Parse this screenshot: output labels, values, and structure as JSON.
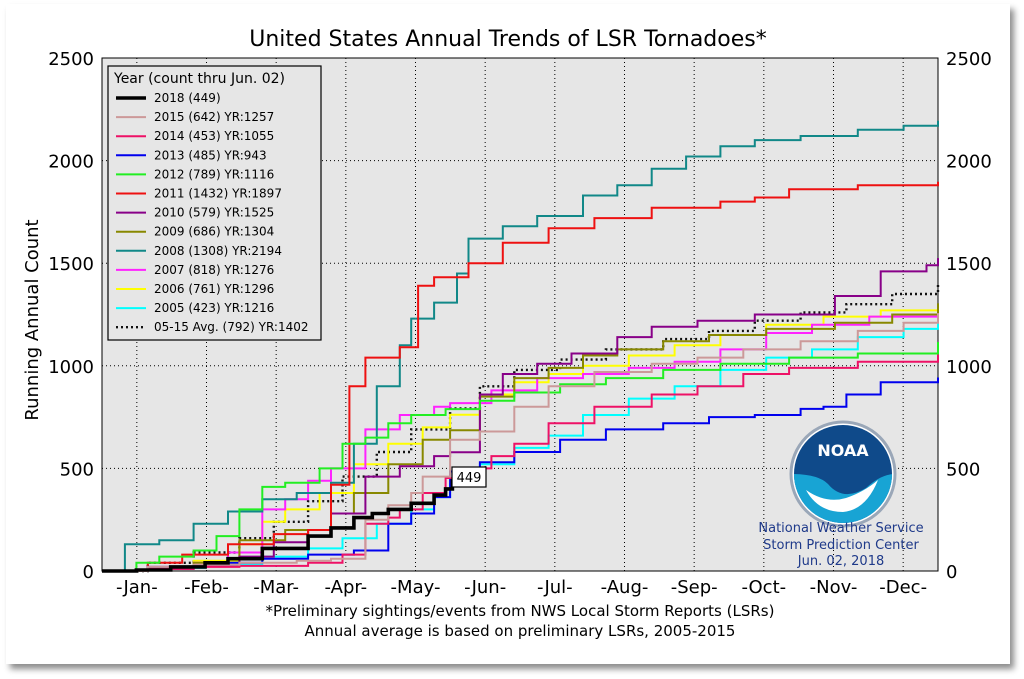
{
  "chart_data": {
    "type": "line",
    "title": "United States Annual Trends of LSR Tornadoes*",
    "ylabel": "Running Annual Count",
    "xlabel": "",
    "ylim": [
      0,
      2500
    ],
    "xlim": [
      0,
      365
    ],
    "y_ticks": [
      "0",
      "500",
      "1000",
      "1500",
      "2000",
      "2500"
    ],
    "x_tick_labels": [
      "-Jan-",
      "-Feb-",
      "-Mar-",
      "-Apr-",
      "-May-",
      "-Jun-",
      "-Jul-",
      "-Aug-",
      "-Sep-",
      "-Oct-",
      "-Nov-",
      "-Dec-"
    ],
    "grid": true,
    "legend_title": "Year (count thru Jun. 02)",
    "legend_position": "top-left",
    "footnote_1": "*Preliminary sightings/events from NWS Local Storm Reports (LSRs)",
    "footnote_2": "Annual average is based on preliminary LSRs, 2005-2015",
    "annotation_label": "449",
    "credit": {
      "line1": "National Weather Service",
      "line2": "Storm Prediction Center",
      "line3": "Jun. 02, 2018",
      "logo_text": "NOAA"
    },
    "series": [
      {
        "name": "2018 (449)",
        "color": "#000000",
        "width": 3.6,
        "dash": "",
        "points": [
          [
            0,
            0
          ],
          [
            15,
            5
          ],
          [
            30,
            20
          ],
          [
            45,
            40
          ],
          [
            55,
            60
          ],
          [
            70,
            110
          ],
          [
            90,
            170
          ],
          [
            100,
            210
          ],
          [
            110,
            260
          ],
          [
            118,
            280
          ],
          [
            125,
            300
          ],
          [
            135,
            330
          ],
          [
            145,
            370
          ],
          [
            150,
            400
          ],
          [
            153,
            449
          ]
        ]
      },
      {
        "name": "2015 (642) YR:1257",
        "color": "#cc9999",
        "width": 2,
        "dash": "",
        "points": [
          [
            0,
            0
          ],
          [
            20,
            20
          ],
          [
            40,
            30
          ],
          [
            60,
            40
          ],
          [
            85,
            50
          ],
          [
            100,
            60
          ],
          [
            115,
            250
          ],
          [
            125,
            320
          ],
          [
            135,
            380
          ],
          [
            140,
            460
          ],
          [
            152,
            640
          ],
          [
            165,
            680
          ],
          [
            180,
            800
          ],
          [
            195,
            900
          ],
          [
            215,
            970
          ],
          [
            240,
            1010
          ],
          [
            260,
            1040
          ],
          [
            280,
            1080
          ],
          [
            305,
            1120
          ],
          [
            330,
            1170
          ],
          [
            350,
            1210
          ],
          [
            365,
            1257
          ]
        ]
      },
      {
        "name": "2014 (453) YR:1055",
        "color": "#ee1166",
        "width": 2,
        "dash": "",
        "points": [
          [
            0,
            0
          ],
          [
            20,
            10
          ],
          [
            40,
            20
          ],
          [
            60,
            25
          ],
          [
            90,
            40
          ],
          [
            105,
            80
          ],
          [
            115,
            230
          ],
          [
            125,
            260
          ],
          [
            130,
            300
          ],
          [
            140,
            380
          ],
          [
            150,
            453
          ],
          [
            160,
            500
          ],
          [
            170,
            560
          ],
          [
            180,
            620
          ],
          [
            195,
            720
          ],
          [
            215,
            800
          ],
          [
            240,
            860
          ],
          [
            260,
            900
          ],
          [
            280,
            960
          ],
          [
            300,
            990
          ],
          [
            330,
            1020
          ],
          [
            365,
            1055
          ]
        ]
      },
      {
        "name": "2013 (485) YR:943",
        "color": "#0000ee",
        "width": 2,
        "dash": "",
        "points": [
          [
            0,
            0
          ],
          [
            20,
            20
          ],
          [
            45,
            40
          ],
          [
            70,
            60
          ],
          [
            90,
            80
          ],
          [
            110,
            100
          ],
          [
            125,
            230
          ],
          [
            135,
            280
          ],
          [
            145,
            360
          ],
          [
            152,
            485
          ],
          [
            165,
            530
          ],
          [
            180,
            580
          ],
          [
            200,
            640
          ],
          [
            220,
            690
          ],
          [
            245,
            720
          ],
          [
            265,
            750
          ],
          [
            285,
            760
          ],
          [
            305,
            790
          ],
          [
            315,
            800
          ],
          [
            325,
            860
          ],
          [
            340,
            920
          ],
          [
            365,
            943
          ]
        ]
      },
      {
        "name": "2012 (789) YR:1116",
        "color": "#22ee22",
        "width": 2,
        "dash": "",
        "points": [
          [
            0,
            0
          ],
          [
            15,
            40
          ],
          [
            25,
            70
          ],
          [
            40,
            100
          ],
          [
            50,
            170
          ],
          [
            60,
            300
          ],
          [
            70,
            410
          ],
          [
            80,
            430
          ],
          [
            95,
            500
          ],
          [
            105,
            620
          ],
          [
            115,
            650
          ],
          [
            125,
            720
          ],
          [
            135,
            760
          ],
          [
            150,
            789
          ],
          [
            165,
            830
          ],
          [
            180,
            870
          ],
          [
            200,
            910
          ],
          [
            220,
            940
          ],
          [
            245,
            980
          ],
          [
            270,
            1010
          ],
          [
            300,
            1040
          ],
          [
            330,
            1060
          ],
          [
            365,
            1116
          ]
        ]
      },
      {
        "name": "2011 (1432) YR:1897",
        "color": "#ee1111",
        "width": 2,
        "dash": "",
        "points": [
          [
            0,
            0
          ],
          [
            20,
            40
          ],
          [
            35,
            80
          ],
          [
            55,
            130
          ],
          [
            75,
            180
          ],
          [
            90,
            200
          ],
          [
            100,
            420
          ],
          [
            108,
            900
          ],
          [
            115,
            1040
          ],
          [
            130,
            1090
          ],
          [
            138,
            1390
          ],
          [
            145,
            1432
          ],
          [
            160,
            1500
          ],
          [
            175,
            1600
          ],
          [
            195,
            1670
          ],
          [
            215,
            1720
          ],
          [
            240,
            1770
          ],
          [
            270,
            1800
          ],
          [
            285,
            1820
          ],
          [
            300,
            1860
          ],
          [
            330,
            1880
          ],
          [
            365,
            1897
          ]
        ]
      },
      {
        "name": "2010 (579) YR:1525",
        "color": "#880088",
        "width": 2,
        "dash": "",
        "points": [
          [
            0,
            0
          ],
          [
            20,
            10
          ],
          [
            40,
            25
          ],
          [
            60,
            70
          ],
          [
            75,
            140
          ],
          [
            90,
            200
          ],
          [
            100,
            280
          ],
          [
            115,
            460
          ],
          [
            130,
            510
          ],
          [
            145,
            560
          ],
          [
            152,
            579
          ],
          [
            165,
            860
          ],
          [
            175,
            960
          ],
          [
            190,
            1010
          ],
          [
            205,
            1060
          ],
          [
            225,
            1140
          ],
          [
            240,
            1190
          ],
          [
            260,
            1220
          ],
          [
            285,
            1250
          ],
          [
            320,
            1340
          ],
          [
            340,
            1460
          ],
          [
            360,
            1490
          ],
          [
            365,
            1525
          ]
        ]
      },
      {
        "name": "2009 (686) YR:1304",
        "color": "#888800",
        "width": 2,
        "dash": "",
        "points": [
          [
            0,
            0
          ],
          [
            20,
            15
          ],
          [
            40,
            40
          ],
          [
            60,
            150
          ],
          [
            80,
            200
          ],
          [
            100,
            280
          ],
          [
            110,
            380
          ],
          [
            125,
            520
          ],
          [
            140,
            640
          ],
          [
            152,
            686
          ],
          [
            165,
            850
          ],
          [
            180,
            940
          ],
          [
            195,
            990
          ],
          [
            210,
            1050
          ],
          [
            225,
            1080
          ],
          [
            245,
            1120
          ],
          [
            265,
            1150
          ],
          [
            290,
            1180
          ],
          [
            320,
            1210
          ],
          [
            345,
            1250
          ],
          [
            365,
            1304
          ]
        ]
      },
      {
        "name": "2008 (1308) YR:2194",
        "color": "#118888",
        "width": 2,
        "dash": "",
        "points": [
          [
            0,
            0
          ],
          [
            10,
            130
          ],
          [
            25,
            150
          ],
          [
            40,
            230
          ],
          [
            55,
            290
          ],
          [
            70,
            350
          ],
          [
            85,
            380
          ],
          [
            100,
            430
          ],
          [
            110,
            620
          ],
          [
            120,
            900
          ],
          [
            130,
            1100
          ],
          [
            135,
            1230
          ],
          [
            145,
            1308
          ],
          [
            155,
            1450
          ],
          [
            160,
            1620
          ],
          [
            175,
            1680
          ],
          [
            190,
            1730
          ],
          [
            210,
            1830
          ],
          [
            225,
            1880
          ],
          [
            240,
            1960
          ],
          [
            255,
            2020
          ],
          [
            270,
            2070
          ],
          [
            285,
            2100
          ],
          [
            305,
            2120
          ],
          [
            330,
            2150
          ],
          [
            350,
            2170
          ],
          [
            365,
            2194
          ]
        ]
      },
      {
        "name": "2007 (818) YR:1276",
        "color": "#ff22ff",
        "width": 2,
        "dash": "",
        "points": [
          [
            0,
            0
          ],
          [
            20,
            20
          ],
          [
            40,
            40
          ],
          [
            55,
            90
          ],
          [
            70,
            300
          ],
          [
            80,
            350
          ],
          [
            90,
            440
          ],
          [
            100,
            500
          ],
          [
            115,
            690
          ],
          [
            130,
            760
          ],
          [
            145,
            800
          ],
          [
            152,
            818
          ],
          [
            170,
            880
          ],
          [
            190,
            940
          ],
          [
            210,
            960
          ],
          [
            230,
            990
          ],
          [
            250,
            1020
          ],
          [
            270,
            1080
          ],
          [
            290,
            1160
          ],
          [
            310,
            1200
          ],
          [
            335,
            1240
          ],
          [
            365,
            1276
          ]
        ]
      },
      {
        "name": "2006 (761) YR:1296",
        "color": "#ffff00",
        "width": 2,
        "dash": "",
        "points": [
          [
            0,
            0
          ],
          [
            20,
            20
          ],
          [
            40,
            50
          ],
          [
            60,
            130
          ],
          [
            70,
            240
          ],
          [
            80,
            300
          ],
          [
            95,
            380
          ],
          [
            110,
            520
          ],
          [
            125,
            620
          ],
          [
            140,
            700
          ],
          [
            152,
            761
          ],
          [
            165,
            860
          ],
          [
            180,
            920
          ],
          [
            195,
            960
          ],
          [
            210,
            1000
          ],
          [
            230,
            1050
          ],
          [
            250,
            1100
          ],
          [
            270,
            1150
          ],
          [
            290,
            1200
          ],
          [
            315,
            1240
          ],
          [
            340,
            1270
          ],
          [
            365,
            1296
          ]
        ]
      },
      {
        "name": "2005 (423) YR:1216",
        "color": "#00ffff",
        "width": 2,
        "dash": "",
        "points": [
          [
            0,
            0
          ],
          [
            20,
            15
          ],
          [
            45,
            30
          ],
          [
            70,
            70
          ],
          [
            90,
            110
          ],
          [
            105,
            160
          ],
          [
            120,
            230
          ],
          [
            135,
            300
          ],
          [
            145,
            360
          ],
          [
            152,
            423
          ],
          [
            165,
            520
          ],
          [
            180,
            600
          ],
          [
            195,
            660
          ],
          [
            210,
            760
          ],
          [
            230,
            840
          ],
          [
            250,
            900
          ],
          [
            270,
            980
          ],
          [
            290,
            1040
          ],
          [
            310,
            1080
          ],
          [
            330,
            1140
          ],
          [
            350,
            1180
          ],
          [
            365,
            1216
          ]
        ]
      },
      {
        "name": "05-15 Avg. (792) YR:1402",
        "color": "#111111",
        "width": 2.4,
        "dash": "2,3",
        "points": [
          [
            0,
            0
          ],
          [
            20,
            40
          ],
          [
            40,
            90
          ],
          [
            60,
            160
          ],
          [
            75,
            240
          ],
          [
            90,
            340
          ],
          [
            105,
            460
          ],
          [
            120,
            580
          ],
          [
            135,
            690
          ],
          [
            152,
            792
          ],
          [
            165,
            900
          ],
          [
            180,
            980
          ],
          [
            200,
            1030
          ],
          [
            220,
            1080
          ],
          [
            245,
            1130
          ],
          [
            265,
            1170
          ],
          [
            285,
            1220
          ],
          [
            305,
            1260
          ],
          [
            325,
            1300
          ],
          [
            345,
            1350
          ],
          [
            365,
            1402
          ]
        ]
      }
    ]
  }
}
